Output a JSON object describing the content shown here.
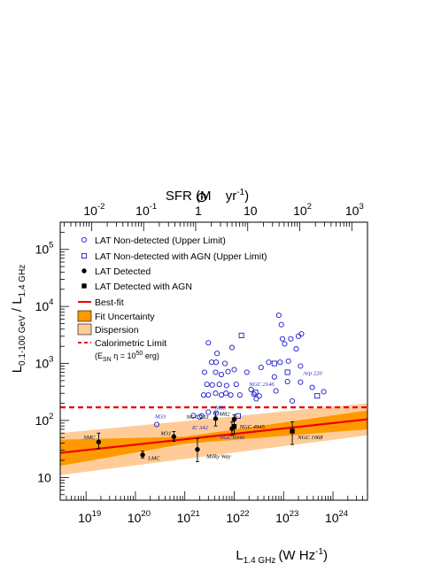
{
  "chart_data": {
    "type": "scatter",
    "title": "",
    "xlabel": "L",
    "xlabel_sub": "1.4 GHz",
    "xlabel_unit": "(W Hz",
    "xlabel_unit_sup": "-1",
    "xlabel_unit_end": ")",
    "ylabel": "L",
    "ylabel_sub1": "0.1-100 GeV",
    "ylabel_mid": " / L",
    "ylabel_sub2": "1.4 GHz",
    "top_axis_label": {
      "pre": "SFR (M",
      "mid": " yr",
      "sup": "-1",
      "end": ")"
    },
    "xscale": "log",
    "yscale": "log",
    "xlim": [
      3e+18,
      5e+24
    ],
    "ylim": [
      4,
      300000
    ],
    "top_xlim": [
      0.0025,
      2000
    ],
    "x_ticks": [
      {
        "value": 1e+19,
        "base": "10",
        "exp": "19"
      },
      {
        "value": 1e+20,
        "base": "10",
        "exp": "20"
      },
      {
        "value": 1e+21,
        "base": "10",
        "exp": "21"
      },
      {
        "value": 1e+22,
        "base": "10",
        "exp": "22"
      },
      {
        "value": 1e+23,
        "base": "10",
        "exp": "23"
      },
      {
        "value": 1e+24,
        "base": "10",
        "exp": "24"
      }
    ],
    "y_ticks": [
      {
        "value": 10,
        "base": "10",
        "exp": ""
      },
      {
        "value": 100,
        "base": "10",
        "exp": "2"
      },
      {
        "value": 1000,
        "base": "10",
        "exp": "3"
      },
      {
        "value": 10000,
        "base": "10",
        "exp": "4"
      },
      {
        "value": 100000,
        "base": "10",
        "exp": "5"
      }
    ],
    "top_ticks": [
      {
        "value": 0.01,
        "base": "10",
        "exp": "-2"
      },
      {
        "value": 0.1,
        "base": "10",
        "exp": "-1"
      },
      {
        "value": 1,
        "base": "1",
        "exp": ""
      },
      {
        "value": 10,
        "base": "10",
        "exp": ""
      },
      {
        "value": 100,
        "base": "10",
        "exp": "2"
      },
      {
        "value": 1000,
        "base": "10",
        "exp": "3"
      }
    ],
    "legend": {
      "placement": "top-left",
      "items": [
        {
          "key": "nondet",
          "label": "LAT Non-detected (Upper Limit)"
        },
        {
          "key": "nondet_agn",
          "label": "LAT Non-detected with AGN (Upper Limit)"
        },
        {
          "key": "det",
          "label": "LAT Detected"
        },
        {
          "key": "det_agn",
          "label": "LAT Detected with AGN"
        },
        {
          "key": "bestfit",
          "label": "Best-fit"
        },
        {
          "key": "fitunc",
          "label": "Fit Uncertainty"
        },
        {
          "key": "dispersion",
          "label": "Dispersion"
        },
        {
          "key": "calorimetric",
          "label": "Calorimetric Limit"
        }
      ],
      "calorimetric_note": {
        "pre": "(E",
        "sub": "SN",
        "mid": " η = 10",
        "sup": "50",
        "end": " erg)"
      }
    },
    "calorimetric_limit": 170,
    "best_fit": {
      "x": [
        3e+18,
        5e+24
      ],
      "y": [
        27,
        105
      ]
    },
    "fit_uncertainty": {
      "x": [
        3e+18,
        1e+21,
        5e+24
      ],
      "lower": [
        16,
        39,
        70
      ],
      "upper": [
        46,
        52,
        150
      ]
    },
    "dispersion": {
      "x": [
        3e+18,
        5e+24
      ],
      "lower": [
        11,
        55
      ],
      "upper": [
        60,
        200
      ]
    },
    "colors": {
      "nondetected": "#1a1acc",
      "fit": "#ee0000",
      "fit_uncertainty": "#ff9900",
      "dispersion": "#ffcc99",
      "calorimetric": "#ee0000",
      "detected": "#000000",
      "annotation_blue": "#1a1acc"
    },
    "series": [
      {
        "name": "LAT Non-detected (Upper Limit)",
        "points": [
          {
            "x": 3e+21,
            "y": 2300
          },
          {
            "x": 4.5e+21,
            "y": 1500
          },
          {
            "x": 3.5e+21,
            "y": 1050
          },
          {
            "x": 4.3e+21,
            "y": 1050
          },
          {
            "x": 6.5e+21,
            "y": 1000
          },
          {
            "x": 9e+21,
            "y": 1900
          },
          {
            "x": 2.5e+21,
            "y": 700
          },
          {
            "x": 4.2e+21,
            "y": 700
          },
          {
            "x": 5.5e+21,
            "y": 640
          },
          {
            "x": 7.5e+21,
            "y": 720
          },
          {
            "x": 1e+22,
            "y": 780
          },
          {
            "x": 1.8e+22,
            "y": 700
          },
          {
            "x": 3.5e+22,
            "y": 850
          },
          {
            "x": 8.5e+22,
            "y": 1050
          },
          {
            "x": 2.8e+21,
            "y": 430
          },
          {
            "x": 3.6e+21,
            "y": 420
          },
          {
            "x": 5e+21,
            "y": 430
          },
          {
            "x": 7e+21,
            "y": 410
          },
          {
            "x": 1.1e+22,
            "y": 430
          },
          {
            "x": 2.2e+22,
            "y": 350
          },
          {
            "x": 2.4e+21,
            "y": 280
          },
          {
            "x": 3e+21,
            "y": 280
          },
          {
            "x": 4.2e+21,
            "y": 300
          },
          {
            "x": 5.5e+21,
            "y": 280
          },
          {
            "x": 6.8e+21,
            "y": 300
          },
          {
            "x": 8.5e+21,
            "y": 280
          },
          {
            "x": 1.3e+22,
            "y": 280
          },
          {
            "x": 2.5e+22,
            "y": 290
          },
          {
            "x": 3.2e+22,
            "y": 270
          },
          {
            "x": 5e+22,
            "y": 1050
          },
          {
            "x": 6.5e+22,
            "y": 580
          },
          {
            "x": 8e+22,
            "y": 7000
          },
          {
            "x": 9e+22,
            "y": 4800
          },
          {
            "x": 9.5e+22,
            "y": 2700
          },
          {
            "x": 1.05e+23,
            "y": 2200
          },
          {
            "x": 1.25e+23,
            "y": 1100
          },
          {
            "x": 1.4e+23,
            "y": 2700
          },
          {
            "x": 1.8e+23,
            "y": 1800
          },
          {
            "x": 2e+23,
            "y": 3000
          },
          {
            "x": 2.3e+23,
            "y": 3300
          },
          {
            "x": 2.2e+23,
            "y": 900
          },
          {
            "x": 1.2e+23,
            "y": 480
          },
          {
            "x": 2.2e+23,
            "y": 470
          },
          {
            "x": 3.8e+23,
            "y": 380
          },
          {
            "x": 6.5e+23,
            "y": 320
          },
          {
            "x": 1.5e+23,
            "y": 220
          },
          {
            "x": 2.8e+22,
            "y": 240
          },
          {
            "x": 7e+22,
            "y": 330
          },
          {
            "x": 2e+21,
            "y": 115
          },
          {
            "x": 3e+21,
            "y": 140
          },
          {
            "x": 2.7e+20,
            "y": 85
          },
          {
            "x": 4.3e+21,
            "y": 135
          },
          {
            "x": 1.5e+21,
            "y": 122
          },
          {
            "x": 2.2e+21,
            "y": 120
          }
        ]
      },
      {
        "name": "LAT Non-detected with AGN (Upper Limit)",
        "points": [
          {
            "x": 1.4e+22,
            "y": 3100
          },
          {
            "x": 6.5e+22,
            "y": 1000
          },
          {
            "x": 1.2e+23,
            "y": 700
          },
          {
            "x": 2.7e+22,
            "y": 310
          },
          {
            "x": 4.8e+23,
            "y": 270
          },
          {
            "x": 1.2e+22,
            "y": 120
          }
        ]
      },
      {
        "name": "LAT Detected",
        "points": [
          {
            "x": 1.8e+19,
            "y": 42,
            "ylo": 32,
            "yhi": 60
          },
          {
            "x": 1.4e+20,
            "y": 25,
            "ylo": 22,
            "yhi": 29
          },
          {
            "x": 6e+20,
            "y": 52,
            "ylo": 43,
            "yhi": 64
          },
          {
            "x": 1.8e+21,
            "y": 31,
            "ylo": 19,
            "yhi": 48
          },
          {
            "x": 4.2e+21,
            "y": 108,
            "ylo": 80,
            "yhi": 138
          },
          {
            "x": 9e+21,
            "y": 72,
            "ylo": 55,
            "yhi": 95
          },
          {
            "x": 1e+22,
            "y": 105,
            "ylo": 85,
            "yhi": 125
          }
        ]
      },
      {
        "name": "LAT Detected with AGN",
        "points": [
          {
            "x": 1e+22,
            "y": 78,
            "ylo": 58,
            "yhi": 98
          },
          {
            "x": 1.5e+23,
            "y": 65,
            "ylo": 38,
            "yhi": 95
          }
        ]
      }
    ],
    "annotations": [
      {
        "text": "SMC",
        "x": 1.8e+19,
        "y": 42,
        "dx": -17,
        "dy": -3,
        "color": "#000000"
      },
      {
        "text": "LMC",
        "x": 1.4e+20,
        "y": 25,
        "dx": 6,
        "dy": 6,
        "color": "#000000"
      },
      {
        "text": "M31",
        "x": 6e+20,
        "y": 52,
        "dx": -15,
        "dy": -2,
        "color": "#000000"
      },
      {
        "text": "Milky Way",
        "x": 1.8e+21,
        "y": 31,
        "dx": 10,
        "dy": 10,
        "color": "#000000"
      },
      {
        "text": "M33",
        "x": 2.7e+20,
        "y": 85,
        "dx": -2,
        "dy": -7,
        "color": "#1a1acc"
      },
      {
        "text": "IC 342",
        "x": 1.4e+21,
        "y": 70,
        "dx": 0,
        "dy": 0,
        "color": "#1a1acc"
      },
      {
        "text": "NGC 253",
        "x": 4.2e+21,
        "y": 108,
        "dx": -33,
        "dy": 0,
        "color": "#000000"
      },
      {
        "text": "M82",
        "x": 1e+22,
        "y": 105,
        "dx": -17,
        "dy": -4,
        "color": "#000000"
      },
      {
        "text": "M83",
        "x": 4.3e+21,
        "y": 135,
        "dx": -1,
        "dy": -4,
        "color": "#1a1acc"
      },
      {
        "text": "NGC 4945",
        "x": 1e+22,
        "y": 78,
        "dx": 6,
        "dy": 2,
        "color": "#000000"
      },
      {
        "text": "NGC 6946",
        "x": 5e+21,
        "y": 47,
        "dx": 0,
        "dy": 0,
        "color": "#1a1acc"
      },
      {
        "text": "NGC 2146",
        "x": 2e+22,
        "y": 400,
        "dx": 0,
        "dy": 0,
        "color": "#1a1acc"
      },
      {
        "text": "Arp 220",
        "x": 2.1e+23,
        "y": 700,
        "dx": 4,
        "dy": 3,
        "color": "#1a1acc"
      },
      {
        "text": "NGC 1068",
        "x": 1.5e+23,
        "y": 65,
        "dx": 6,
        "dy": 9,
        "color": "#000000"
      }
    ]
  }
}
